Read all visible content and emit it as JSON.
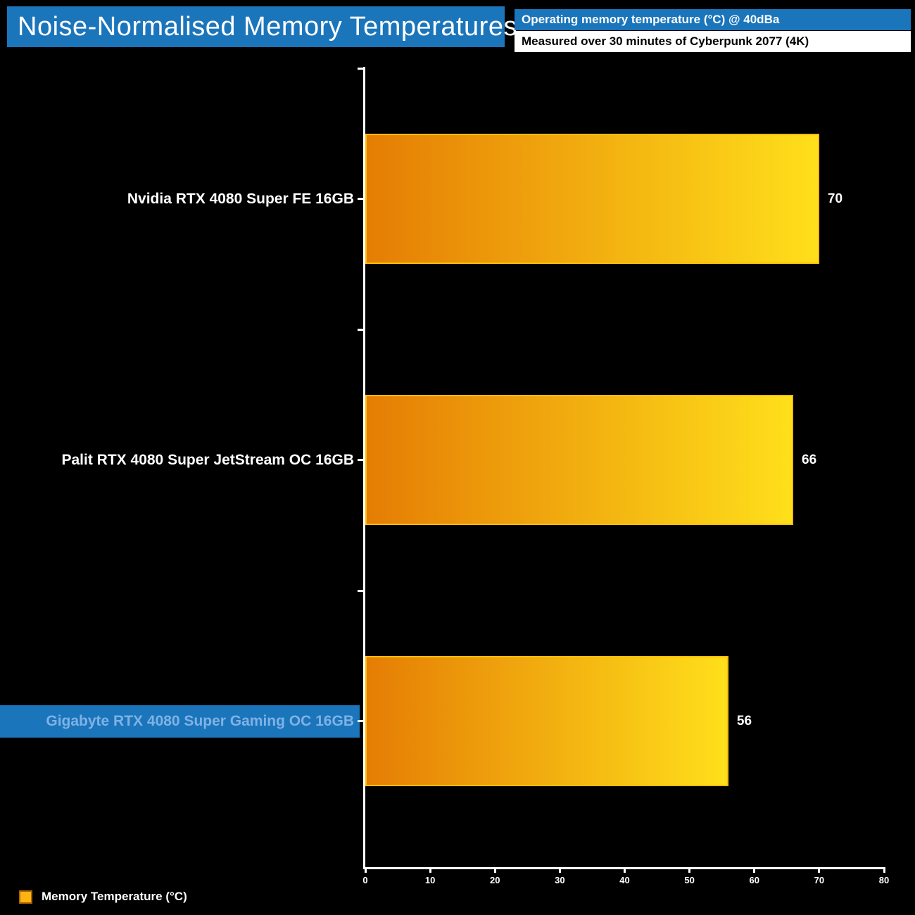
{
  "title": "Noise-Normalised Memory Temperatures",
  "banner": {
    "line1": "Operating memory temperature (°C) @ 40dBa",
    "line2": "Measured over 30 minutes of Cyberpunk 2077 (4K)"
  },
  "chart_data": {
    "type": "bar",
    "orientation": "horizontal",
    "title": "Noise-Normalised Memory Temperatures",
    "subtitle_lines": [
      "Operating memory temperature (°C) @ 40dBa",
      "Measured over 30 minutes of Cyberpunk 2077 (4K)"
    ],
    "categories": [
      "Nvidia RTX 4080 Super FE 16GB",
      "Palit RTX 4080 Super JetStream OC 16GB",
      "Gigabyte RTX 4080 Super Gaming OC 16GB"
    ],
    "values": [
      70,
      66,
      56
    ],
    "highlighted_index": 2,
    "highlighted_category": "Gigabyte RTX 4080 Super Gaming OC 16GB",
    "xlim": [
      0,
      80
    ],
    "x_ticks": [
      0,
      10,
      20,
      30,
      40,
      50,
      60,
      70,
      80
    ],
    "grid": false,
    "legend_position": "bottom-left",
    "legend": [
      {
        "label": "Memory Temperature (°C)",
        "color": "#ffb414"
      }
    ],
    "bar_color_start": "#e57d04",
    "bar_color_end": "#ffdf1b",
    "bar_border_color": "#f9bd0a"
  },
  "colors": {
    "background": "#000000",
    "accent_blue": "#1b75bb",
    "highlight_text": "#7fb2e5",
    "axis": "#ffffff"
  }
}
